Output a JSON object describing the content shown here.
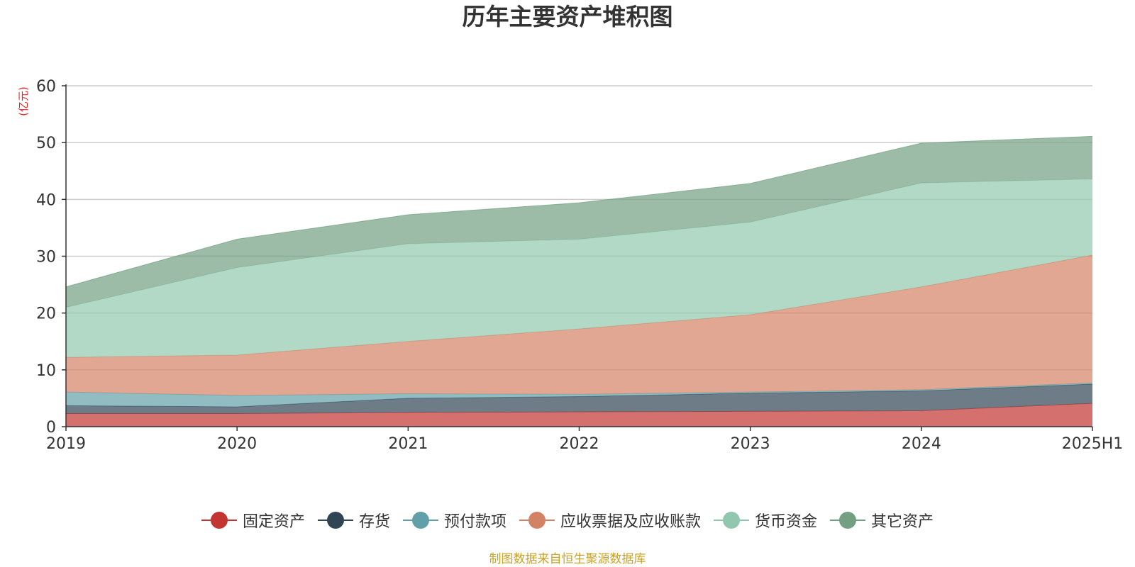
{
  "chart_data": {
    "type": "area",
    "stacked": true,
    "title": "历年主要资产堆积图",
    "unit_label": "(亿元)",
    "categories": [
      "2019",
      "2020",
      "2021",
      "2022",
      "2023",
      "2024",
      "2025H1"
    ],
    "ylim": [
      0,
      60
    ],
    "yticks": [
      0,
      10,
      20,
      30,
      40,
      50,
      60
    ],
    "grid": true,
    "legend_position": "bottom",
    "series": [
      {
        "name": "固定资产",
        "color": "#c23531",
        "values": [
          2.3,
          2.3,
          2.5,
          2.6,
          2.7,
          2.8,
          4.1
        ]
      },
      {
        "name": "存货",
        "color": "#2f4554",
        "values": [
          1.4,
          1.2,
          2.5,
          2.7,
          3.2,
          3.5,
          3.4
        ]
      },
      {
        "name": "预付款项",
        "color": "#61a0a8",
        "values": [
          2.4,
          2.0,
          0.8,
          0.4,
          0.2,
          0.2,
          0.2
        ]
      },
      {
        "name": "应收票据及应收账款",
        "color": "#d48265",
        "values": [
          6.1,
          7.1,
          9.2,
          11.5,
          13.6,
          18.1,
          22.5
        ]
      },
      {
        "name": "货币资金",
        "color": "#91c7ae",
        "values": [
          8.8,
          15.4,
          17.2,
          15.8,
          16.3,
          18.3,
          13.4
        ]
      },
      {
        "name": "其它资产",
        "color": "#749f83",
        "values": [
          3.6,
          5.0,
          5.1,
          6.4,
          6.8,
          7.0,
          7.5
        ]
      }
    ]
  },
  "source_note": "制图数据来自恒生聚源数据库"
}
